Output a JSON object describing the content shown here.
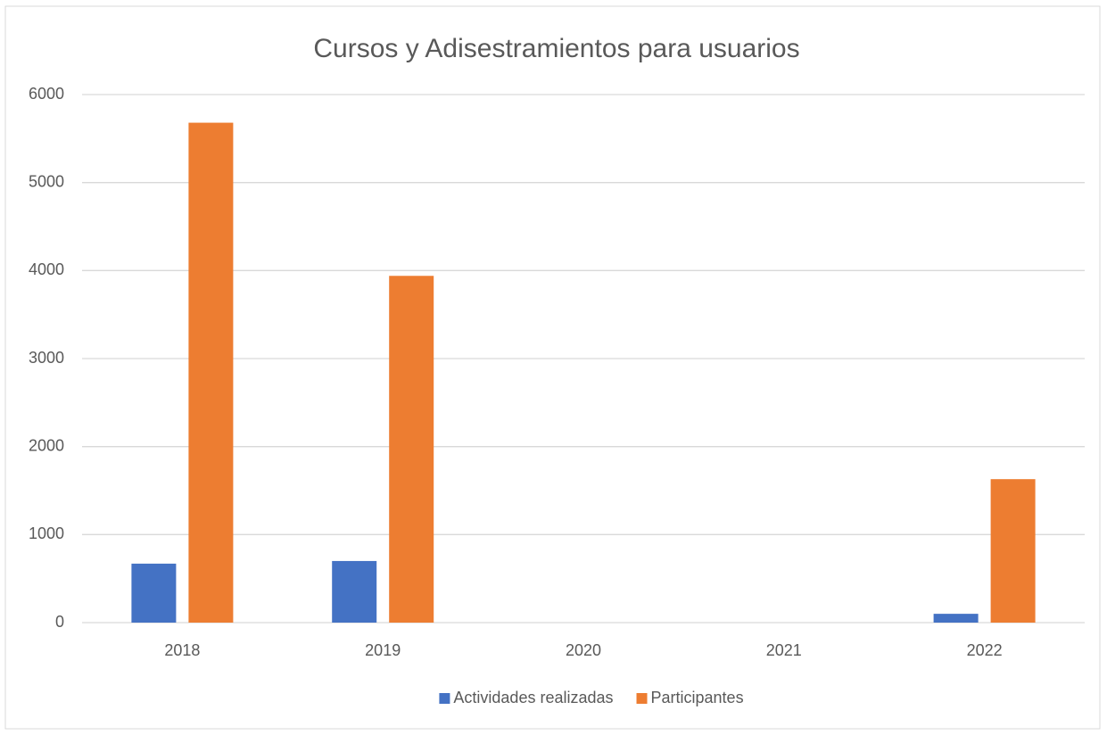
{
  "chart_data": {
    "type": "bar",
    "title": "Cursos y Adisestramientos para usuarios",
    "categories": [
      "2018",
      "2019",
      "2020",
      "2021",
      "2022"
    ],
    "series": [
      {
        "name": "Actividades realizadas",
        "color": "#4472c4",
        "values": [
          670,
          700,
          0,
          0,
          100
        ]
      },
      {
        "name": "Participantes",
        "color": "#ed7d31",
        "values": [
          5680,
          3940,
          0,
          0,
          1630
        ]
      }
    ],
    "ylim": [
      0,
      6000
    ],
    "yticks": [
      0,
      1000,
      2000,
      3000,
      4000,
      5000,
      6000
    ],
    "grid": true,
    "legend": "bottom"
  }
}
